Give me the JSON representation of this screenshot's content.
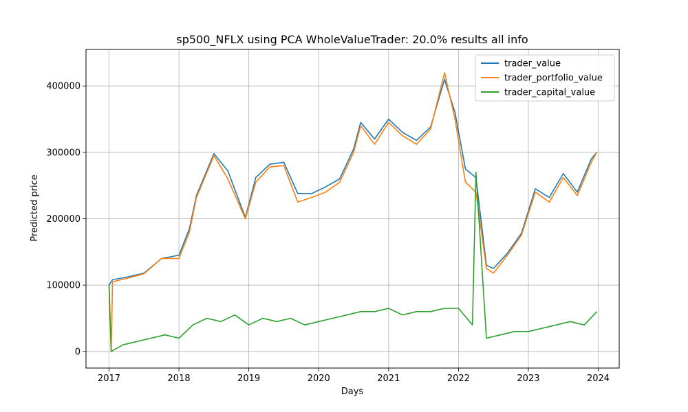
{
  "chart_data": {
    "type": "line",
    "title": "sp500_NFLX using PCA WholeValueTrader: 20.0% results all info",
    "xlabel": "Days",
    "ylabel": "Predicted price",
    "xlim": [
      2016.67,
      2024.3
    ],
    "ylim": [
      -25000,
      455000
    ],
    "xticks": [
      2017,
      2018,
      2019,
      2020,
      2021,
      2022,
      2023,
      2024
    ],
    "xtick_labels": [
      "2017",
      "2018",
      "2019",
      "2020",
      "2021",
      "2022",
      "2023",
      "2024"
    ],
    "yticks": [
      0,
      100000,
      200000,
      300000,
      400000
    ],
    "ytick_labels": [
      "0",
      "100000",
      "200000",
      "300000",
      "400000"
    ],
    "grid": true,
    "legend_position": "top-right",
    "series": [
      {
        "name": "trader_value",
        "color": "#1f77b4",
        "x": [
          2017.0,
          2017.05,
          2017.25,
          2017.5,
          2017.75,
          2018.0,
          2018.15,
          2018.25,
          2018.5,
          2018.7,
          2018.95,
          2019.1,
          2019.3,
          2019.5,
          2019.7,
          2019.9,
          2020.1,
          2020.3,
          2020.5,
          2020.6,
          2020.8,
          2021.0,
          2021.2,
          2021.4,
          2021.6,
          2021.8,
          2021.95,
          2022.1,
          2022.25,
          2022.4,
          2022.5,
          2022.7,
          2022.9,
          2023.1,
          2023.3,
          2023.5,
          2023.7,
          2023.9,
          2023.98
        ],
        "y": [
          100000,
          108000,
          112000,
          118000,
          140000,
          145000,
          185000,
          235000,
          298000,
          272000,
          202000,
          262000,
          282000,
          285000,
          238000,
          238000,
          248000,
          260000,
          305000,
          345000,
          320000,
          350000,
          330000,
          318000,
          338000,
          410000,
          360000,
          275000,
          262000,
          130000,
          125000,
          148000,
          178000,
          245000,
          232000,
          268000,
          240000,
          290000,
          300000
        ]
      },
      {
        "name": "trader_portfolio_value",
        "color": "#ff7f0e",
        "x": [
          2017.0,
          2017.03,
          2017.05,
          2017.25,
          2017.5,
          2017.75,
          2018.0,
          2018.15,
          2018.25,
          2018.5,
          2018.7,
          2018.95,
          2019.1,
          2019.3,
          2019.5,
          2019.7,
          2019.9,
          2020.1,
          2020.3,
          2020.5,
          2020.6,
          2020.8,
          2021.0,
          2021.2,
          2021.4,
          2021.6,
          2021.8,
          2021.95,
          2022.1,
          2022.25,
          2022.4,
          2022.5,
          2022.7,
          2022.9,
          2023.1,
          2023.3,
          2023.5,
          2023.7,
          2023.9,
          2023.98
        ],
        "y": [
          100000,
          0,
          105000,
          110000,
          117000,
          140000,
          140000,
          180000,
          232000,
          295000,
          260000,
          200000,
          255000,
          278000,
          280000,
          225000,
          232000,
          240000,
          255000,
          300000,
          340000,
          312000,
          345000,
          325000,
          312000,
          335000,
          420000,
          350000,
          255000,
          240000,
          125000,
          118000,
          145000,
          175000,
          240000,
          225000,
          262000,
          235000,
          285000,
          300000
        ]
      },
      {
        "name": "trader_capital_value",
        "color": "#2ca02c",
        "x": [
          2017.0,
          2017.03,
          2017.2,
          2017.4,
          2017.6,
          2017.8,
          2018.0,
          2018.2,
          2018.4,
          2018.6,
          2018.8,
          2019.0,
          2019.2,
          2019.4,
          2019.6,
          2019.8,
          2020.0,
          2020.2,
          2020.4,
          2020.6,
          2020.8,
          2021.0,
          2021.2,
          2021.4,
          2021.6,
          2021.8,
          2022.0,
          2022.2,
          2022.25,
          2022.4,
          2022.6,
          2022.8,
          2023.0,
          2023.2,
          2023.4,
          2023.6,
          2023.8,
          2023.98
        ],
        "y": [
          100000,
          0,
          10000,
          15000,
          20000,
          25000,
          20000,
          40000,
          50000,
          45000,
          55000,
          40000,
          50000,
          45000,
          50000,
          40000,
          45000,
          50000,
          55000,
          60000,
          60000,
          65000,
          55000,
          60000,
          60000,
          65000,
          65000,
          40000,
          270000,
          20000,
          25000,
          30000,
          30000,
          35000,
          40000,
          45000,
          40000,
          60000
        ]
      }
    ]
  }
}
